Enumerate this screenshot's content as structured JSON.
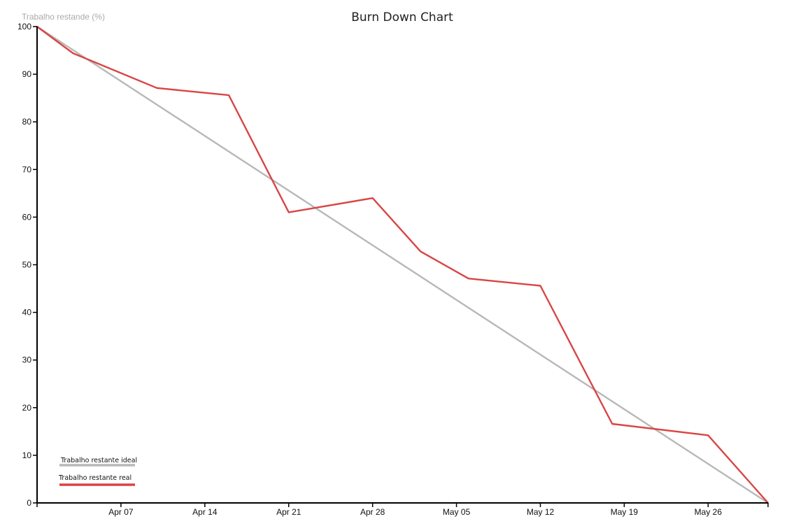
{
  "chart_data": {
    "type": "line",
    "title": "Burn Down Chart",
    "ylabel": "Trabalho restande (%)",
    "xlabel": "",
    "ylim": [
      0,
      100
    ],
    "yticks": [
      0,
      10,
      20,
      30,
      40,
      50,
      60,
      70,
      80,
      90,
      100
    ],
    "xlim": [
      "2016-03-31",
      "2016-05-31"
    ],
    "xticks": [
      {
        "date": "2016-04-07",
        "label": "Apr 07"
      },
      {
        "date": "2016-04-14",
        "label": "Apr 14"
      },
      {
        "date": "2016-04-21",
        "label": "Apr 21"
      },
      {
        "date": "2016-04-28",
        "label": "Apr 28"
      },
      {
        "date": "2016-05-05",
        "label": "May 05"
      },
      {
        "date": "2016-05-12",
        "label": "May 12"
      },
      {
        "date": "2016-05-19",
        "label": "May 19"
      },
      {
        "date": "2016-05-26",
        "label": "May 26"
      }
    ],
    "grid": false,
    "legend_position": "bottom-left",
    "series": [
      {
        "name": "Trabalho restante ideal",
        "color": "#b8b8b8",
        "points": [
          {
            "x": "2016-03-31",
            "y": 100
          },
          {
            "x": "2016-05-31",
            "y": 0
          }
        ]
      },
      {
        "name": "Trabalho restante real",
        "color": "#d94545",
        "points": [
          {
            "x": "2016-03-31",
            "y": 100
          },
          {
            "x": "2016-04-03",
            "y": 94.4
          },
          {
            "x": "2016-04-10",
            "y": 87.1
          },
          {
            "x": "2016-04-16",
            "y": 85.6
          },
          {
            "x": "2016-04-21",
            "y": 61.0
          },
          {
            "x": "2016-04-28",
            "y": 64.0
          },
          {
            "x": "2016-05-02",
            "y": 52.8
          },
          {
            "x": "2016-05-06",
            "y": 47.1
          },
          {
            "x": "2016-05-12",
            "y": 45.6
          },
          {
            "x": "2016-05-18",
            "y": 16.6
          },
          {
            "x": "2016-05-26",
            "y": 14.2
          },
          {
            "x": "2016-05-31",
            "y": 0
          }
        ]
      }
    ]
  }
}
